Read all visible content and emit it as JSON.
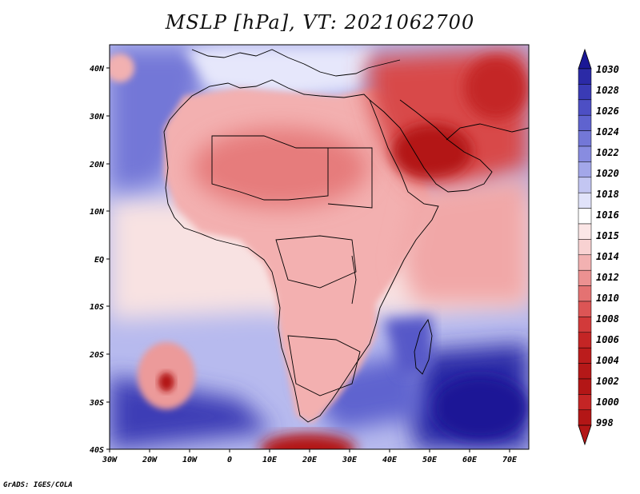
{
  "title": "MSLP [hPa], VT: 2021062700",
  "footer": "GrADS: IGES/COLA",
  "x_axis": {
    "ticks": [
      "30W",
      "20W",
      "10W",
      "0",
      "10E",
      "20E",
      "30E",
      "40E",
      "50E",
      "60E",
      "70E"
    ]
  },
  "y_axis": {
    "ticks": [
      "40N",
      "30N",
      "20N",
      "10N",
      "EQ",
      "10S",
      "20S",
      "30S",
      "40S"
    ]
  },
  "colorbar": {
    "labels": [
      "1030",
      "1028",
      "1026",
      "1024",
      "1022",
      "1020",
      "1018",
      "1016",
      "1015",
      "1014",
      "1012",
      "1010",
      "1008",
      "1006",
      "1004",
      "1002",
      "1000",
      "998"
    ],
    "colors": [
      "#1a1796",
      "#2b2aa6",
      "#3a3bb5",
      "#4d4fc4",
      "#5f63cf",
      "#7377d7",
      "#888ce0",
      "#a3a7e9",
      "#c3c6f2",
      "#e1e3fa",
      "#ffffff",
      "#f8d2d2",
      "#f2b1b1",
      "#ec9191",
      "#e47272",
      "#dc5555",
      "#d23a3a",
      "#c42525",
      "#b31616"
    ]
  },
  "fields": {
    "ocean_color": "#9ea1e6",
    "land_color": "#f2a3a3",
    "high_color": "#2222a0",
    "low_color": "#b41a1a"
  }
}
